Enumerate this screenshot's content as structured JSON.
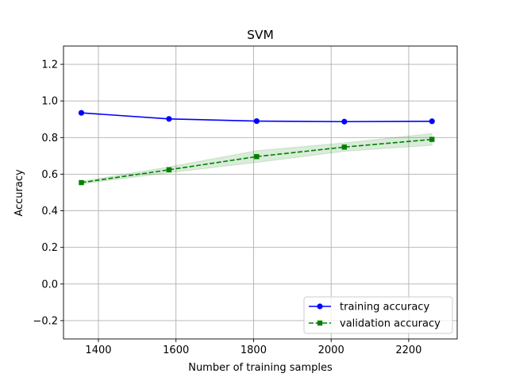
{
  "chart_data": {
    "type": "line",
    "title": "SVM",
    "xlabel": "Number of training samples",
    "ylabel": "Accuracy",
    "xlim": [
      1310,
      2325
    ],
    "ylim": [
      -0.3,
      1.3
    ],
    "xticks": [
      1400,
      1600,
      1800,
      2000,
      2200
    ],
    "xtick_labels": [
      "1400",
      "1600",
      "1800",
      "2000",
      "2200"
    ],
    "yticks": [
      -0.2,
      0.0,
      0.2,
      0.4,
      0.6,
      0.8,
      1.0,
      1.2
    ],
    "ytick_labels": [
      "−0.2",
      "0.0",
      "0.2",
      "0.4",
      "0.6",
      "0.8",
      "1.0",
      "1.2"
    ],
    "grid": true,
    "legend_position": "lower-right",
    "x": [
      1356,
      1582,
      1808,
      2034,
      2260
    ],
    "series": [
      {
        "name": "training accuracy",
        "values": [
          0.935,
          0.902,
          0.89,
          0.887,
          0.889
        ],
        "color": "#0000ff",
        "marker": "circle",
        "linestyle": "solid",
        "band_lower": [
          0.935,
          0.902,
          0.89,
          0.887,
          0.889
        ],
        "band_upper": [
          0.935,
          0.902,
          0.89,
          0.887,
          0.889
        ]
      },
      {
        "name": "validation accuracy",
        "values": [
          0.554,
          0.624,
          0.696,
          0.748,
          0.79
        ],
        "color": "#008000",
        "marker": "square",
        "linestyle": "dashed",
        "band_lower": [
          0.547,
          0.608,
          0.664,
          0.725,
          0.758
        ],
        "band_upper": [
          0.561,
          0.64,
          0.728,
          0.771,
          0.822
        ]
      }
    ]
  }
}
